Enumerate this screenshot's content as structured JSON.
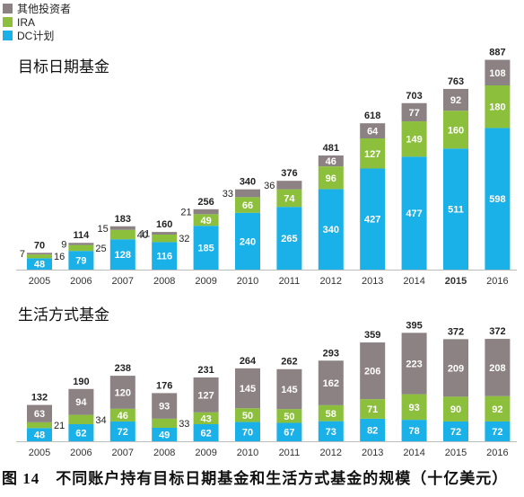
{
  "legend": [
    {
      "label": "其他投资者",
      "color": "#8c8283"
    },
    {
      "label": "IRA",
      "color": "#8cc03c"
    },
    {
      "label": "DC计划",
      "color": "#1ab0e8"
    }
  ],
  "colors": {
    "other": "#8c8283",
    "ira": "#8cc03c",
    "dc": "#1ab0e8"
  },
  "figure_caption": {
    "number": "图 14",
    "text": "不同账户持有目标日期基金和生活方式基金的规模（十亿美元）"
  },
  "chart_data": [
    {
      "type": "bar",
      "stacked": true,
      "title": "目标日期基金",
      "categories": [
        "2005",
        "2006",
        "2007",
        "2008",
        "2009",
        "2010",
        "2011",
        "2012",
        "2013",
        "2014",
        "2015",
        "2016"
      ],
      "series": [
        {
          "name": "DC计划",
          "key": "dc",
          "values": [
            48,
            79,
            128,
            116,
            185,
            240,
            265,
            340,
            427,
            477,
            511,
            598
          ]
        },
        {
          "name": "IRA",
          "key": "ira",
          "values": [
            16,
            25,
            40,
            32,
            49,
            66,
            74,
            96,
            127,
            149,
            160,
            180
          ]
        },
        {
          "name": "其他投资者",
          "key": "other",
          "values": [
            7,
            9,
            15,
            11,
            21,
            33,
            36,
            46,
            64,
            77,
            92,
            108
          ]
        }
      ],
      "totals": [
        70,
        114,
        183,
        160,
        256,
        340,
        376,
        481,
        618,
        703,
        763,
        887
      ],
      "bold_categories": [
        "2015"
      ],
      "ylim": [
        0,
        900
      ],
      "grid": false,
      "legend_position": "top-left"
    },
    {
      "type": "bar",
      "stacked": true,
      "title": "生活方式基金",
      "categories": [
        "2005",
        "2006",
        "2007",
        "2008",
        "2009",
        "2010",
        "2011",
        "2012",
        "2013",
        "2014",
        "2015",
        "2016"
      ],
      "series": [
        {
          "name": "DC计划",
          "key": "dc",
          "values": [
            48,
            62,
            72,
            49,
            62,
            70,
            67,
            73,
            82,
            78,
            72,
            72
          ]
        },
        {
          "name": "IRA",
          "key": "ira",
          "values": [
            21,
            34,
            46,
            33,
            43,
            50,
            50,
            58,
            71,
            93,
            90,
            92
          ]
        },
        {
          "name": "其他投资者",
          "key": "other",
          "values": [
            63,
            94,
            120,
            93,
            127,
            145,
            145,
            162,
            206,
            223,
            209,
            208
          ]
        }
      ],
      "totals": [
        132,
        190,
        238,
        176,
        231,
        264,
        262,
        293,
        359,
        395,
        372,
        372
      ],
      "bold_categories": [],
      "ylim": [
        0,
        400
      ],
      "grid": false
    }
  ]
}
